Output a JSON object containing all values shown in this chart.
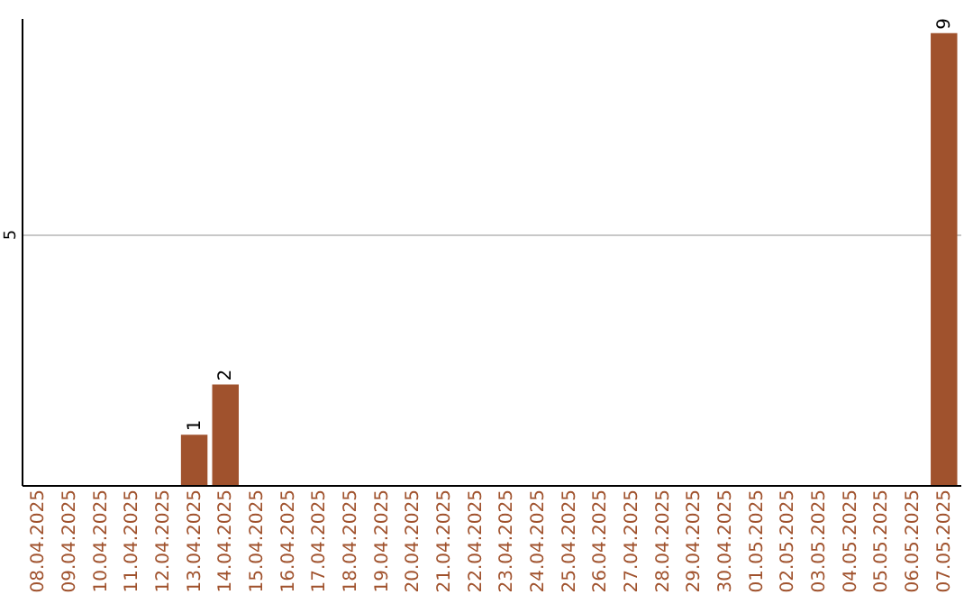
{
  "chart_data": {
    "type": "bar",
    "categories": [
      "08.04.2025",
      "09.04.2025",
      "10.04.2025",
      "11.04.2025",
      "12.04.2025",
      "13.04.2025",
      "14.04.2025",
      "15.04.2025",
      "16.04.2025",
      "17.04.2025",
      "18.04.2025",
      "19.04.2025",
      "20.04.2025",
      "21.04.2025",
      "22.04.2025",
      "23.04.2025",
      "24.04.2025",
      "25.04.2025",
      "26.04.2025",
      "27.04.2025",
      "28.04.2025",
      "29.04.2025",
      "30.04.2025",
      "01.05.2025",
      "02.05.2025",
      "03.05.2025",
      "04.05.2025",
      "05.05.2025",
      "06.05.2025",
      "07.05.2025"
    ],
    "values": [
      0,
      0,
      0,
      0,
      0,
      1,
      2,
      0,
      0,
      0,
      0,
      0,
      0,
      0,
      0,
      0,
      0,
      0,
      0,
      0,
      0,
      0,
      0,
      0,
      0,
      0,
      0,
      0,
      0,
      9
    ],
    "value_labels": [
      null,
      null,
      null,
      null,
      null,
      "1",
      "2",
      null,
      null,
      null,
      null,
      null,
      null,
      null,
      null,
      null,
      null,
      null,
      null,
      null,
      null,
      null,
      null,
      null,
      null,
      null,
      null,
      null,
      null,
      "9"
    ],
    "color": "#a0522d",
    "ylim": [
      0,
      9.3
    ],
    "yticks": [
      5
    ],
    "grid": "y"
  }
}
